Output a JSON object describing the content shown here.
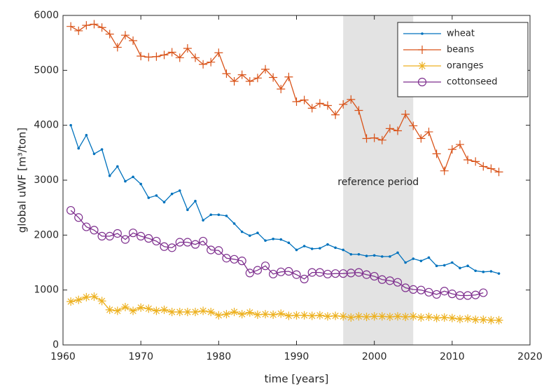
{
  "chart_data": {
    "type": "line",
    "x": [
      1961,
      1962,
      1963,
      1964,
      1965,
      1966,
      1967,
      1968,
      1969,
      1970,
      1971,
      1972,
      1973,
      1974,
      1975,
      1976,
      1977,
      1978,
      1979,
      1980,
      1981,
      1982,
      1983,
      1984,
      1985,
      1986,
      1987,
      1988,
      1989,
      1990,
      1991,
      1992,
      1993,
      1994,
      1995,
      1996,
      1997,
      1998,
      1999,
      2000,
      2001,
      2002,
      2003,
      2004,
      2005,
      2006,
      2007,
      2008,
      2009,
      2010,
      2011,
      2012,
      2013,
      2014,
      2015,
      2016
    ],
    "series": [
      {
        "name": "wheat",
        "color": "#0072BD",
        "marker": ".",
        "values": [
          4000,
          3580,
          3820,
          3480,
          3560,
          3080,
          3250,
          2980,
          3060,
          2930,
          2680,
          2720,
          2600,
          2750,
          2810,
          2460,
          2620,
          2270,
          2370,
          2370,
          2350,
          2210,
          2060,
          1990,
          2040,
          1900,
          1930,
          1920,
          1860,
          1730,
          1800,
          1750,
          1760,
          1830,
          1770,
          1730,
          1650,
          1650,
          1620,
          1630,
          1610,
          1610,
          1680,
          1500,
          1570,
          1530,
          1590,
          1440,
          1450,
          1500,
          1400,
          1440,
          1350,
          1330,
          1340,
          1300
        ]
      },
      {
        "name": "beans",
        "color": "#D95319",
        "marker": "+",
        "values": [
          5800,
          5720,
          5820,
          5840,
          5780,
          5660,
          5420,
          5640,
          5540,
          5260,
          5240,
          5250,
          5280,
          5330,
          5230,
          5400,
          5230,
          5110,
          5150,
          5320,
          4940,
          4800,
          4920,
          4800,
          4860,
          5020,
          4870,
          4660,
          4880,
          4430,
          4460,
          4310,
          4400,
          4360,
          4190,
          4380,
          4470,
          4270,
          3760,
          3770,
          3730,
          3940,
          3900,
          4200,
          3990,
          3760,
          3880,
          3480,
          3170,
          3560,
          3650,
          3370,
          3340,
          3250,
          3210,
          3150
        ]
      },
      {
        "name": "oranges",
        "color": "#EDB120",
        "marker": "*",
        "values": [
          790,
          820,
          870,
          880,
          800,
          640,
          620,
          690,
          620,
          680,
          660,
          620,
          640,
          600,
          600,
          600,
          600,
          620,
          600,
          540,
          560,
          600,
          560,
          590,
          550,
          560,
          550,
          570,
          530,
          540,
          540,
          530,
          540,
          520,
          530,
          520,
          500,
          520,
          510,
          520,
          520,
          510,
          520,
          510,
          520,
          500,
          510,
          490,
          500,
          490,
          470,
          480,
          460,
          460,
          450,
          450
        ]
      },
      {
        "name": "cottonseed",
        "color": "#7E2F8E",
        "marker": "o",
        "values": [
          2450,
          2320,
          2150,
          2090,
          1980,
          1980,
          2030,
          1920,
          2040,
          1980,
          1940,
          1890,
          1790,
          1770,
          1870,
          1870,
          1830,
          1890,
          1730,
          1720,
          1580,
          1560,
          1530,
          1310,
          1360,
          1440,
          1290,
          1330,
          1340,
          1280,
          1200,
          1320,
          1320,
          1290,
          1300,
          1300,
          1310,
          1320,
          1280,
          1250,
          1190,
          1170,
          1140,
          1040,
          1010,
          1000,
          960,
          920,
          980,
          930,
          900,
          900,
          910,
          950,
          null,
          null
        ]
      }
    ],
    "xlabel": "time [years]",
    "ylabel": "global uWF [m³/ton]",
    "xlim": [
      1960,
      2020
    ],
    "xticks": [
      1960,
      1970,
      1980,
      1990,
      2000,
      2010,
      2020
    ],
    "ylim": [
      0,
      6000
    ],
    "yticks": [
      0,
      1000,
      2000,
      3000,
      4000,
      5000,
      6000
    ],
    "reference_period": {
      "label": "reference period",
      "x": [
        1996,
        2005
      ],
      "color": "#e3e3e3"
    },
    "legend": "northeast"
  }
}
